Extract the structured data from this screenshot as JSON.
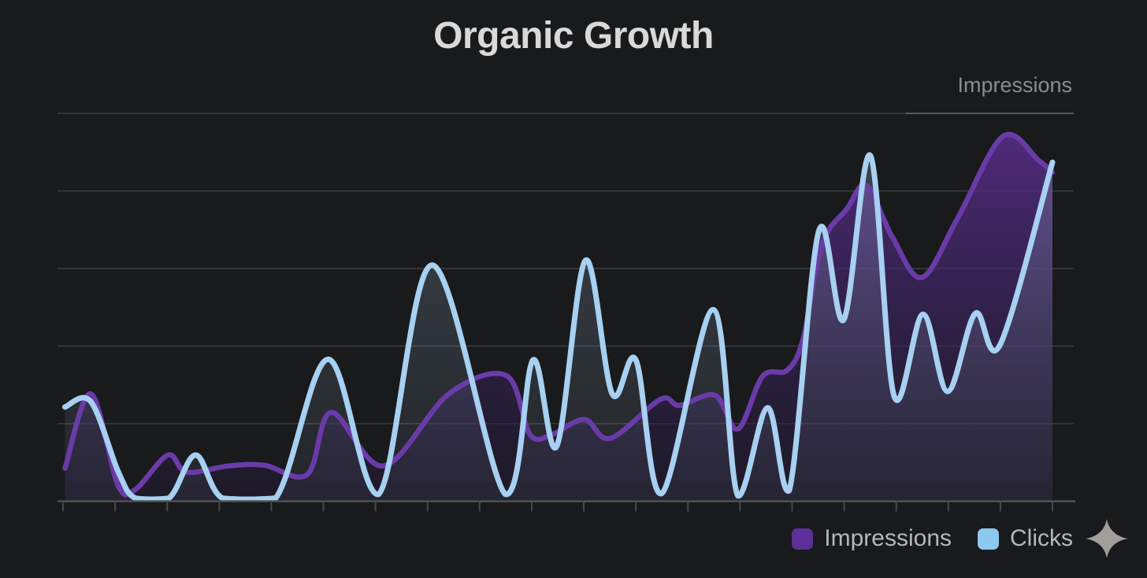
{
  "header": {
    "title": "Organic Growth",
    "axis_label": "Impressions"
  },
  "legend": {
    "items": [
      {
        "label": "Impressions",
        "color": "#5d2f99"
      },
      {
        "label": "Clicks",
        "color": "#8cc8f0"
      }
    ]
  },
  "colors": {
    "background": "#191a1c",
    "title_text": "#d9d9d9",
    "axis_label_text": "#8a8d90",
    "legend_text": "#b5b7b9",
    "grid": "#3a3d40",
    "grid_highlight": "#64676a",
    "axis": "#4f5255",
    "tick": "#46494c",
    "impressions_line": "#6a3ba8",
    "impressions_fill_top": "#5a2f8f",
    "impressions_fill_bottom": "#221a35",
    "clicks_line": "#a7d0f1",
    "clicks_fill": "#aac8e4",
    "sparkle": "#a29f9b"
  },
  "chart_data": {
    "type": "area",
    "title": "Organic Growth",
    "x": {
      "tick_count": 20,
      "tick_labels_visible": false,
      "domain": [
        0,
        100
      ]
    },
    "y": {
      "label": "Impressions",
      "gridline_count": 5,
      "tick_labels_visible": false,
      "ylim": [
        0,
        100
      ],
      "grid": true
    },
    "legend_position": "bottom-right",
    "units_note": "axes unlabeled; values estimated 0-100 from gridlines, x as % of axis span",
    "series": [
      {
        "name": "Impressions",
        "color": "#6a3ba8",
        "points": [
          [
            0.2,
            8.5
          ],
          [
            2.8,
            27.7
          ],
          [
            5.6,
            3.8
          ],
          [
            7.3,
            3.0
          ],
          [
            10.6,
            11.9
          ],
          [
            12.5,
            7.5
          ],
          [
            16.7,
            9.1
          ],
          [
            20.3,
            9.3
          ],
          [
            24.7,
            6.9
          ],
          [
            27.1,
            22.9
          ],
          [
            32.4,
            9.1
          ],
          [
            39.0,
            27.7
          ],
          [
            44.8,
            32.4
          ],
          [
            47.2,
            17.2
          ],
          [
            49.4,
            17.2
          ],
          [
            52.7,
            21.1
          ],
          [
            55.3,
            16.2
          ],
          [
            60.4,
            26.3
          ],
          [
            62.3,
            24.7
          ],
          [
            65.9,
            27.3
          ],
          [
            68.2,
            18.6
          ],
          [
            70.7,
            32.2
          ],
          [
            73.2,
            33.8
          ],
          [
            74.8,
            41.9
          ],
          [
            76.7,
            66.2
          ],
          [
            79.2,
            75.3
          ],
          [
            81.2,
            81.4
          ],
          [
            83.8,
            68.2
          ],
          [
            86.8,
            57.7
          ],
          [
            90.4,
            72.9
          ],
          [
            95.0,
            94.1
          ],
          [
            98.6,
            87.9
          ],
          [
            100,
            84.8
          ]
        ]
      },
      {
        "name": "Clicks",
        "color": "#a7d0f1",
        "points": [
          [
            0.2,
            24.3
          ],
          [
            2.8,
            25.7
          ],
          [
            5.6,
            7.5
          ],
          [
            7.3,
            0.8
          ],
          [
            10.7,
            0.8
          ],
          [
            13.4,
            11.9
          ],
          [
            16.1,
            0.8
          ],
          [
            21.5,
            0.8
          ],
          [
            26.8,
            36.6
          ],
          [
            31.9,
            1.8
          ],
          [
            37.3,
            60.9
          ],
          [
            44.7,
            1.8
          ],
          [
            47.5,
            36.4
          ],
          [
            49.9,
            14.2
          ],
          [
            52.8,
            62.1
          ],
          [
            55.5,
            27.7
          ],
          [
            57.9,
            36.4
          ],
          [
            60.5,
            2.0
          ],
          [
            65.7,
            49.4
          ],
          [
            68.2,
            1.4
          ],
          [
            71.2,
            24.1
          ],
          [
            73.4,
            2.8
          ],
          [
            76.4,
            69.8
          ],
          [
            78.9,
            46.8
          ],
          [
            81.6,
            89.1
          ],
          [
            84.0,
            27.1
          ],
          [
            86.9,
            48.2
          ],
          [
            89.4,
            28.3
          ],
          [
            92.2,
            48.4
          ],
          [
            94.7,
            40.3
          ],
          [
            100,
            87.4
          ]
        ]
      }
    ]
  }
}
